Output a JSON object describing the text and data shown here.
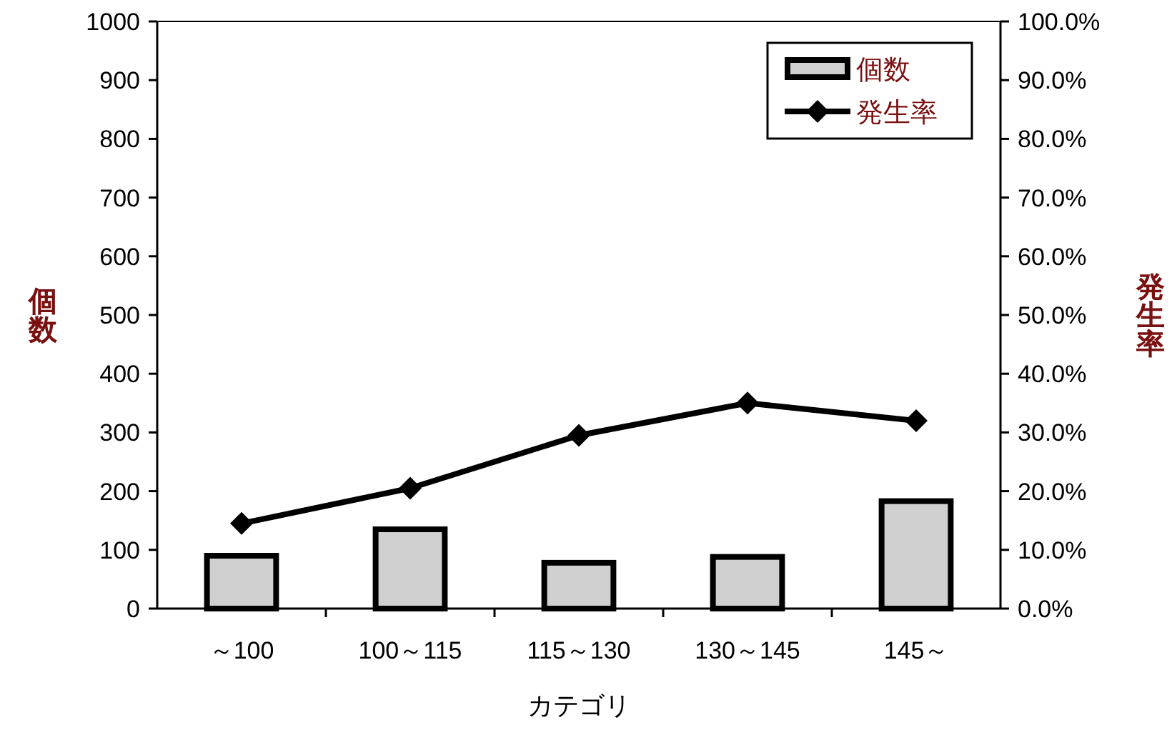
{
  "chart_data": {
    "type": "bar",
    "categories": [
      "～100",
      "100～115",
      "115～130",
      "130～145",
      "145～"
    ],
    "xlabel": "カテゴリ",
    "ylabel": "個数",
    "y2label": "発生率",
    "series": [
      {
        "name": "個数",
        "color": "#d0d0d0",
        "values": [
          90,
          135,
          78,
          88,
          183
        ]
      },
      {
        "name": "発生率",
        "type": "line",
        "axis": "y2",
        "color": "#000000",
        "marker": "diamond",
        "values": [
          14.5,
          20.5,
          29.5,
          35,
          32
        ]
      }
    ],
    "ylim": [
      0,
      1000
    ],
    "yticks": [
      0,
      100,
      200,
      300,
      400,
      500,
      600,
      700,
      800,
      900,
      1000
    ],
    "y2lim": [
      0,
      100
    ],
    "y2ticks": [
      {
        "value": 0,
        "label": "0.0%"
      },
      {
        "value": 10,
        "label": "10.0%"
      },
      {
        "value": 20,
        "label": "20.0%"
      },
      {
        "value": 30,
        "label": "30.0%"
      },
      {
        "value": 40,
        "label": "40.0%"
      },
      {
        "value": 50,
        "label": "50.0%"
      },
      {
        "value": 60,
        "label": "60.0%"
      },
      {
        "value": 70,
        "label": "70.0%"
      },
      {
        "value": 80,
        "label": "80.0%"
      },
      {
        "value": 90,
        "label": "90.0%"
      },
      {
        "value": 100,
        "label": "100.0%"
      }
    ],
    "legend": "top right",
    "grid": false
  }
}
